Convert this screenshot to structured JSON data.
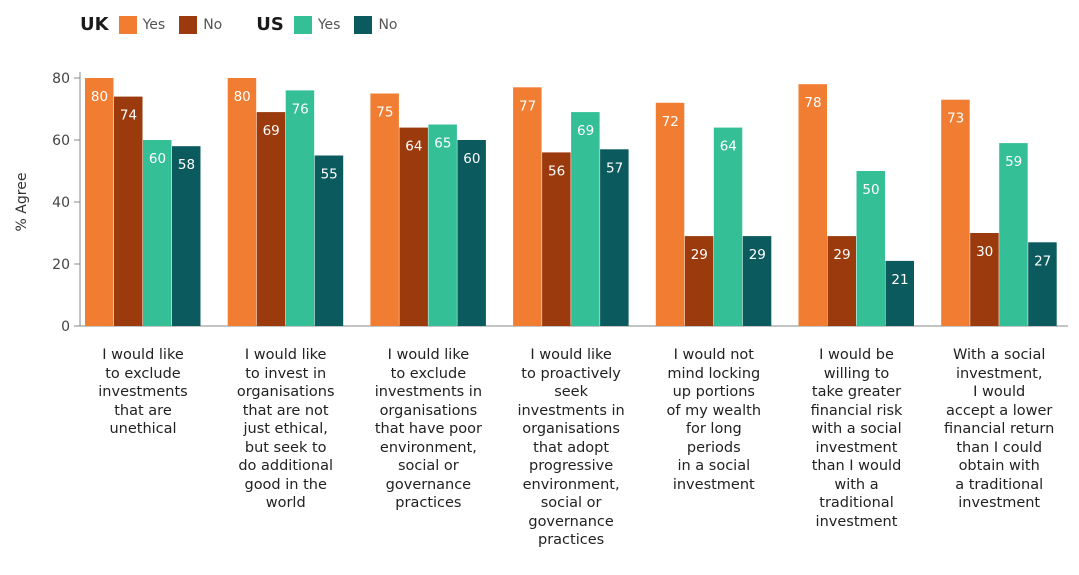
{
  "legend": {
    "groups": [
      {
        "country": "UK",
        "items": [
          {
            "label": "Yes",
            "color": "#F07D32"
          },
          {
            "label": "No",
            "color": "#9B3A0C"
          }
        ]
      },
      {
        "country": "US",
        "items": [
          {
            "label": "Yes",
            "color": "#34BF97"
          },
          {
            "label": "No",
            "color": "#0B5A5E"
          }
        ]
      }
    ]
  },
  "chart_data": {
    "type": "bar",
    "ylabel": "% Agree",
    "xlabel": "",
    "ylim": [
      0,
      80
    ],
    "yticks": [
      0,
      20,
      40,
      60,
      80
    ],
    "grid": false,
    "legend_position": "top-left",
    "categories": [
      [
        "I would like",
        "to exclude",
        "investments",
        "that are",
        "unethical"
      ],
      [
        "I would like",
        "to invest in",
        "organisations",
        "that are not",
        "just ethical,",
        "but seek to",
        "do additional",
        "good in the",
        "world"
      ],
      [
        "I would like",
        "to exclude",
        "investments in",
        "organisations",
        "that have poor",
        "environment,",
        "social or",
        "governance",
        "practices"
      ],
      [
        "I would like",
        "to proactively",
        "seek",
        "investments in",
        "organisations",
        "that adopt",
        "progressive",
        "environment,",
        "social or",
        "governance",
        "practices"
      ],
      [
        "I would not",
        "mind locking",
        "up portions",
        "of my wealth",
        "for long",
        "periods",
        "in a social",
        "investment"
      ],
      [
        "I would be",
        "willing to",
        "take greater",
        "financial risk",
        "with a social",
        "investment",
        "than I would",
        "with a",
        "traditional",
        "investment"
      ],
      [
        "With a social",
        "investment,",
        "I would",
        "accept a lower",
        "financial return",
        "than I could",
        "obtain with",
        "a traditional",
        "investment"
      ]
    ],
    "series": [
      {
        "values": [
          80,
          80,
          75,
          77,
          72,
          78,
          73
        ],
        "color": "#F07D32"
      },
      {
        "values": [
          74,
          69,
          64,
          56,
          29,
          29,
          30
        ],
        "color": "#9B3A0C"
      },
      {
        "values": [
          60,
          76,
          65,
          69,
          64,
          50,
          59
        ],
        "color": "#34BF97"
      },
      {
        "values": [
          58,
          55,
          60,
          57,
          29,
          21,
          27
        ],
        "color": "#0B5A5E"
      }
    ]
  }
}
